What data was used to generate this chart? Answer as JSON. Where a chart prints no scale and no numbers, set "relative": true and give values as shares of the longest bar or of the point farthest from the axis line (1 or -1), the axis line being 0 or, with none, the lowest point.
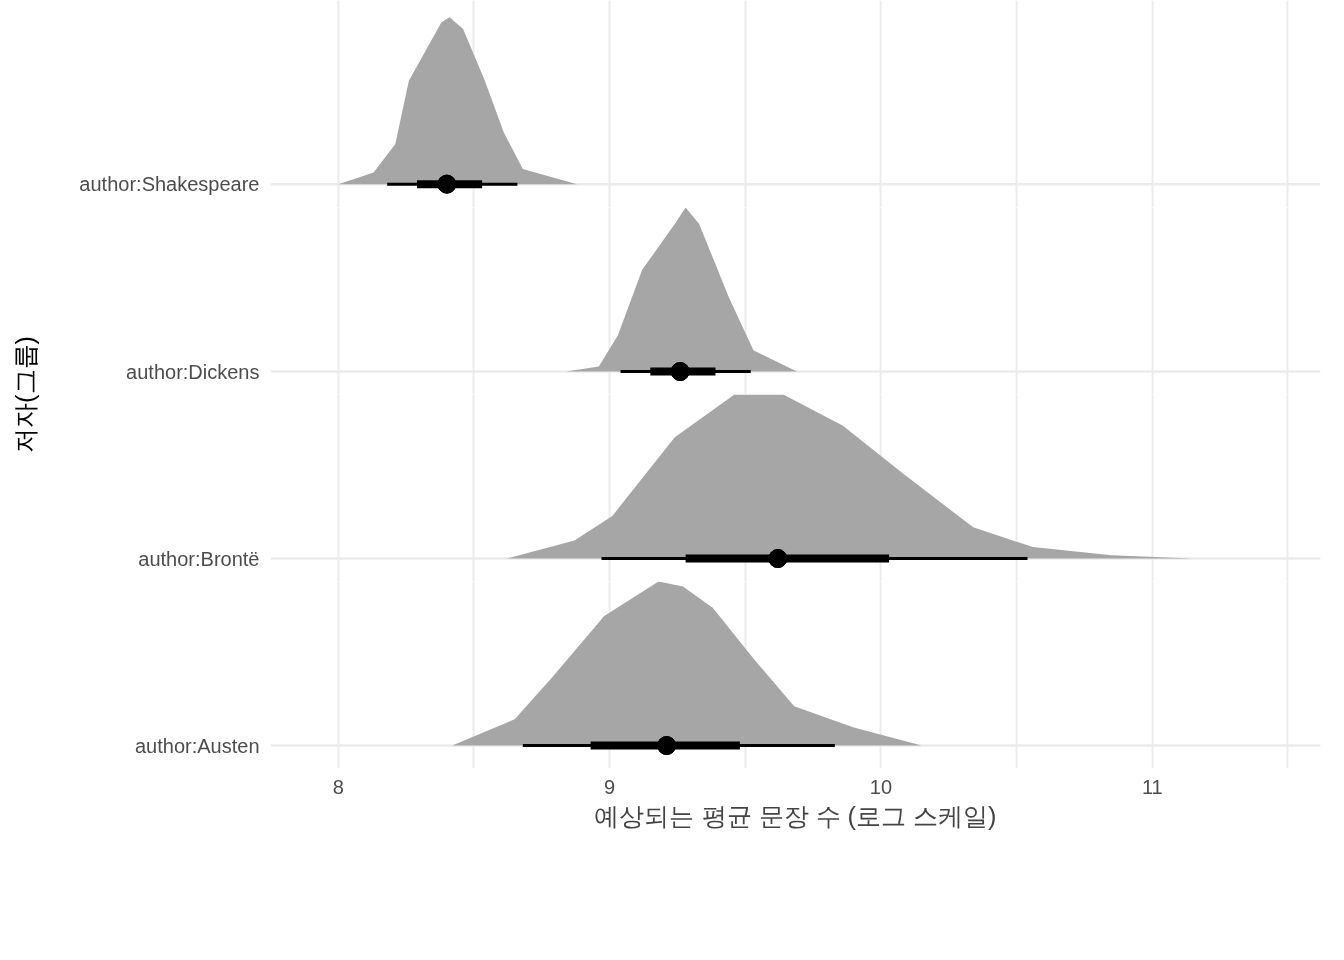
{
  "chart_data": [
    {
      "type": "area",
      "ylabel": "author:Shakespeare",
      "relative": true,
      "grid": true,
      "tick_labels": "y",
      "xlim": [
        7.75,
        11.62
      ],
      "xticks": [
        8,
        {
          "value": 8.5,
          "label": null
        },
        9,
        {
          "value": 9.5,
          "label": null
        },
        10,
        {
          "value": 10.5,
          "label": null
        },
        11,
        {
          "value": 11.5,
          "label": null
        }
      ],
      "series": [
        {
          "color": "#a6a6a6",
          "x": [
            8.0,
            8.13,
            8.21,
            8.26,
            8.38,
            8.41,
            8.46,
            8.54,
            8.61,
            8.68,
            8.88
          ],
          "values": [
            0,
            0.07,
            0.24,
            0.62,
            0.97,
            1,
            0.93,
            0.62,
            0.31,
            0.09,
            0
          ]
        },
        {
          "type": "scatter",
          "color": "#000000",
          "x": [
            8.4
          ],
          "values": [
            0
          ],
          "xerrors": [
            [
              8.29,
              8.53
            ]
          ]
        },
        {
          "type": "scatter",
          "color": "#000000",
          "x": [
            8.4
          ],
          "values": [
            0
          ],
          "xerrors": [
            [
              8.18,
              8.66
            ]
          ]
        }
      ]
    },
    {
      "type": "area",
      "ylabel": "author:Dickens",
      "annotations": [
        "저자(그룹)"
      ],
      "relative": true,
      "grid": true,
      "tick_labels": "y",
      "xlim": [
        7.75,
        11.62
      ],
      "xticks": [
        8,
        {
          "value": 8.5,
          "label": null
        },
        9,
        {
          "value": 9.5,
          "label": null
        },
        10,
        {
          "value": 10.5,
          "label": null
        },
        11,
        {
          "value": 11.5,
          "label": null
        }
      ],
      "series": [
        {
          "color": "#a6a6a6",
          "x": [
            8.84,
            8.96,
            9.03,
            9.12,
            9.24,
            9.28,
            9.33,
            9.44,
            9.53,
            9.69
          ],
          "values": [
            0,
            0.03,
            0.22,
            0.62,
            0.9,
            1,
            0.9,
            0.45,
            0.13,
            0
          ]
        },
        {
          "type": "scatter",
          "color": "#000000",
          "x": [
            9.26
          ],
          "values": [
            0
          ],
          "xerrors": [
            [
              9.15,
              9.39
            ]
          ]
        },
        {
          "type": "scatter",
          "color": "#000000",
          "x": [
            9.26
          ],
          "values": [
            0
          ],
          "xerrors": [
            [
              9.04,
              9.52
            ]
          ]
        }
      ]
    },
    {
      "type": "area",
      "ylabel": "author:Brontë",
      "relative": true,
      "grid": true,
      "tick_labels": "y",
      "xlim": [
        7.75,
        11.62
      ],
      "xticks": [
        8,
        {
          "value": 8.5,
          "label": null
        },
        9,
        {
          "value": 9.5,
          "label": null
        },
        10,
        {
          "value": 10.5,
          "label": null
        },
        11,
        {
          "value": 11.5,
          "label": null
        }
      ],
      "series": [
        {
          "color": "#a6a6a6",
          "x": [
            8.62,
            8.87,
            9.01,
            9.24,
            9.46,
            9.64,
            9.86,
            10.08,
            10.34,
            10.56,
            10.85,
            11.15
          ],
          "values": [
            0,
            0.11,
            0.26,
            0.74,
            1,
            1,
            0.81,
            0.52,
            0.19,
            0.07,
            0.02,
            0
          ]
        },
        {
          "type": "scatter",
          "color": "#000000",
          "x": [
            9.62
          ],
          "values": [
            0
          ],
          "xerrors": [
            [
              9.28,
              10.03
            ]
          ]
        },
        {
          "type": "scatter",
          "color": "#000000",
          "x": [
            9.62
          ],
          "values": [
            0
          ],
          "xerrors": [
            [
              8.97,
              10.54
            ]
          ]
        }
      ]
    },
    {
      "type": "area",
      "ylabel": "author:Austen",
      "xlabel": "예상되는 평균 문장 수 (로그 스케일)",
      "relative": true,
      "grid": true,
      "xlim": [
        7.75,
        11.62
      ],
      "xticks": [
        8,
        {
          "value": 8.5,
          "label": null
        },
        9,
        {
          "value": 9.5,
          "label": null
        },
        10,
        {
          "value": 10.5,
          "label": null
        },
        11,
        {
          "value": 11.5,
          "label": null
        }
      ],
      "series": [
        {
          "color": "#a6a6a6",
          "x": [
            8.42,
            8.65,
            8.79,
            8.98,
            9.18,
            9.27,
            9.38,
            9.53,
            9.68,
            9.9,
            10.15
          ],
          "values": [
            0,
            0.16,
            0.42,
            0.79,
            1,
            0.97,
            0.84,
            0.53,
            0.24,
            0.11,
            0
          ]
        },
        {
          "type": "scatter",
          "color": "#000000",
          "x": [
            9.21
          ],
          "values": [
            0
          ],
          "xerrors": [
            [
              8.93,
              9.48
            ]
          ]
        },
        {
          "type": "scatter",
          "color": "#000000",
          "x": [
            9.21
          ],
          "values": [
            0
          ],
          "xerrors": [
            [
              8.68,
              9.83
            ]
          ]
        }
      ]
    }
  ]
}
